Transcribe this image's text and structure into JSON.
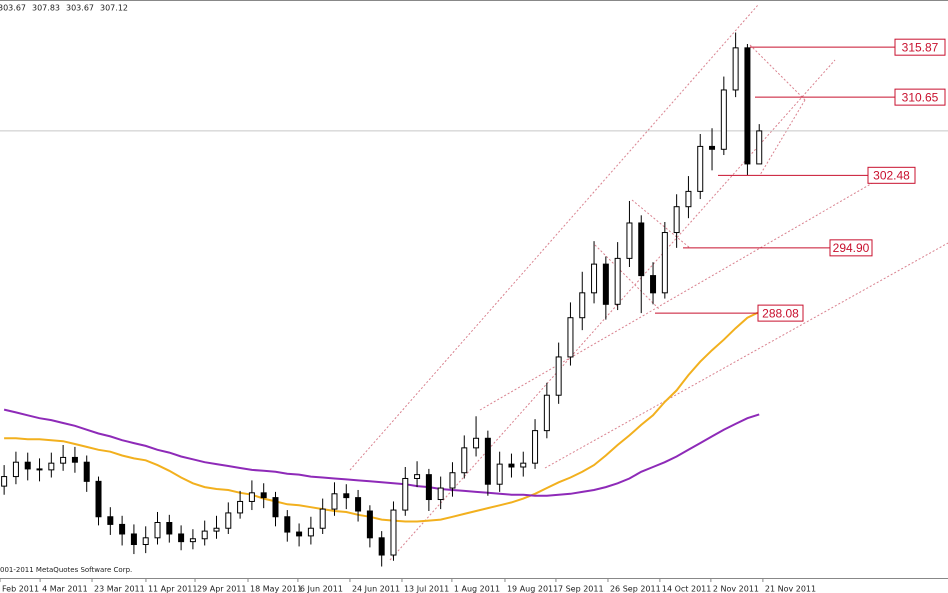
{
  "chart_data": {
    "type": "candlestick",
    "header_values": [
      303.67,
      307.83,
      303.67,
      307.12
    ],
    "copyright": "001-2011 MetaQuotes Software Corp.",
    "ohlc": {
      "open": [
        270.0,
        271.0,
        272.5,
        271.8,
        271.7,
        272.4,
        273.0,
        272.5,
        270.5,
        266.8,
        266.0,
        265.0,
        263.9,
        264.6,
        266.2,
        265.0,
        264.2,
        264.5,
        265.3,
        265.6,
        267.2,
        268.4,
        269.3,
        268.8,
        266.8,
        265.2,
        264.8,
        265.6,
        267.6,
        269.2,
        268.8,
        267.4,
        264.6,
        262.8,
        267.5,
        270.8,
        271.2,
        268.6,
        269.8,
        271.4,
        274.0,
        275.0,
        270.2,
        272.3,
        272.0,
        272.4,
        275.8,
        279.5,
        283.5,
        287.6,
        290.2,
        293.2,
        289.0,
        293.8,
        297.5,
        292.0,
        290.2,
        296.5,
        299.2,
        300.8,
        305.5,
        305.2,
        311.4,
        315.8,
        303.67
      ],
      "high": [
        272.2,
        273.6,
        273.5,
        272.9,
        273.5,
        274.3,
        274.1,
        273.2,
        271.0,
        267.8,
        266.9,
        266.0,
        265.8,
        267.3,
        267.0,
        265.9,
        265.5,
        266.4,
        266.9,
        268.3,
        269.5,
        270.6,
        270.3,
        269.4,
        267.5,
        266.1,
        266.8,
        268.7,
        270.4,
        270.2,
        269.6,
        268.0,
        265.3,
        268.4,
        272.0,
        272.6,
        271.8,
        271.0,
        272.5,
        275.3,
        277.3,
        275.8,
        273.6,
        273.4,
        273.6,
        277.0,
        280.8,
        285.0,
        289.2,
        292.4,
        295.6,
        294.0,
        295.5,
        299.8,
        298.3,
        293.4,
        297.6,
        300.5,
        302.4,
        306.8,
        307.4,
        312.8,
        317.4,
        316.2,
        307.83
      ],
      "low": [
        269.1,
        270.2,
        270.6,
        270.5,
        270.9,
        271.6,
        271.4,
        269.4,
        265.9,
        264.9,
        263.8,
        262.9,
        263.0,
        263.9,
        264.1,
        263.3,
        263.4,
        263.8,
        264.5,
        265.0,
        266.6,
        267.5,
        267.7,
        265.8,
        264.2,
        263.7,
        263.9,
        265.0,
        266.9,
        267.6,
        266.3,
        263.6,
        261.6,
        262.2,
        266.9,
        269.9,
        267.4,
        267.6,
        268.9,
        270.8,
        273.1,
        269.0,
        269.4,
        270.9,
        271.0,
        271.8,
        275.0,
        278.6,
        282.6,
        286.3,
        289.1,
        287.4,
        288.4,
        292.9,
        288.08,
        289.0,
        289.6,
        294.9,
        298.0,
        300.0,
        303.0,
        304.6,
        310.65,
        302.48,
        303.67
      ],
      "close": [
        271.0,
        272.5,
        271.8,
        271.7,
        272.4,
        273.0,
        272.5,
        270.5,
        266.8,
        266.0,
        265.0,
        263.9,
        264.6,
        266.2,
        265.0,
        264.2,
        264.5,
        265.3,
        265.6,
        267.2,
        268.4,
        269.3,
        268.8,
        266.8,
        265.2,
        264.8,
        265.6,
        267.6,
        269.2,
        268.8,
        267.4,
        264.6,
        262.8,
        267.5,
        270.8,
        271.2,
        268.6,
        269.8,
        271.4,
        274.0,
        275.0,
        270.2,
        272.3,
        272.0,
        272.4,
        275.8,
        279.5,
        283.5,
        287.6,
        290.2,
        293.2,
        289.0,
        293.8,
        297.5,
        292.0,
        290.2,
        296.5,
        299.2,
        300.8,
        305.5,
        305.2,
        311.4,
        315.8,
        303.67,
        307.12
      ]
    },
    "series": [
      {
        "color": "#f2b01e",
        "values": [
          275.0,
          275.0,
          274.9,
          274.9,
          274.8,
          274.7,
          274.4,
          274.1,
          273.8,
          273.6,
          273.2,
          272.9,
          272.7,
          272.2,
          271.6,
          270.9,
          270.3,
          269.9,
          269.7,
          269.6,
          269.3,
          269.1,
          268.7,
          268.4,
          268.1,
          268.0,
          267.8,
          267.6,
          267.4,
          267.3,
          267.0,
          266.8,
          266.5,
          266.4,
          266.3,
          266.3,
          266.4,
          266.5,
          266.8,
          267.1,
          267.4,
          267.7,
          268.0,
          268.3,
          268.7,
          269.2,
          269.8,
          270.4,
          270.9,
          271.5,
          272.2,
          273.2,
          274.3,
          275.3,
          276.4,
          277.4,
          278.8,
          280.0,
          281.6,
          283.0,
          284.2,
          285.3,
          286.5,
          287.6,
          288.2
        ]
      },
      {
        "color": "#8e2ab8",
        "values": [
          278.0,
          277.7,
          277.4,
          277.1,
          276.9,
          276.6,
          276.3,
          275.9,
          275.5,
          275.2,
          274.8,
          274.5,
          274.2,
          273.8,
          273.5,
          273.1,
          272.8,
          272.5,
          272.3,
          272.1,
          271.9,
          271.7,
          271.6,
          271.5,
          271.3,
          271.2,
          271.0,
          270.9,
          270.8,
          270.7,
          270.6,
          270.5,
          270.4,
          270.3,
          270.2,
          270.0,
          269.9,
          269.7,
          269.6,
          269.5,
          269.4,
          269.3,
          269.2,
          269.1,
          269.1,
          269.0,
          269.0,
          269.1,
          269.2,
          269.4,
          269.6,
          269.9,
          270.3,
          270.8,
          271.5,
          272.0,
          272.5,
          273.1,
          273.8,
          274.5,
          275.2,
          275.9,
          276.5,
          277.1,
          277.5
        ]
      }
    ],
    "levels": [
      {
        "value": 315.87,
        "label": "315.87"
      },
      {
        "value": 310.65,
        "label": "310.65"
      },
      {
        "value": 302.48,
        "label": "302.48"
      },
      {
        "value": 294.9,
        "label": "294.90"
      },
      {
        "value": 288.08,
        "label": "288.08"
      }
    ],
    "xlim": [
      -0.35,
      80
    ],
    "ylim": [
      260.4,
      320.8
    ],
    "xticks": [
      {
        "value": -0.35,
        "label": "Feb 2011"
      },
      {
        "value": 3.05,
        "label": "4 Mar 2011"
      },
      {
        "value": 7.45,
        "label": "23 Mar 2011"
      },
      {
        "value": 12.02,
        "label": "11 Apr 2011"
      },
      {
        "value": 16.18,
        "label": "29 Apr 2011"
      },
      {
        "value": 20.67,
        "label": "18 May 2011"
      },
      {
        "value": 24.9,
        "label": "6 Jun 2011"
      },
      {
        "value": 29.31,
        "label": "24 Jun 2011"
      },
      {
        "value": 33.72,
        "label": "13 Jul 2011"
      },
      {
        "value": 37.95,
        "label": "1 Aug 2011"
      },
      {
        "value": 42.45,
        "label": "19 Aug 2011"
      },
      {
        "value": 46.77,
        "label": "7 Sep 2011"
      },
      {
        "value": 51.18,
        "label": "26 Sep 2011"
      },
      {
        "value": 55.58,
        "label": "14 Oct 2011"
      },
      {
        "value": 59.9,
        "label": "2 Nov 2011"
      },
      {
        "value": 64.31,
        "label": "21 Nov 2011"
      }
    ],
    "up_color": "#ffffff",
    "down_color": "#000000"
  }
}
